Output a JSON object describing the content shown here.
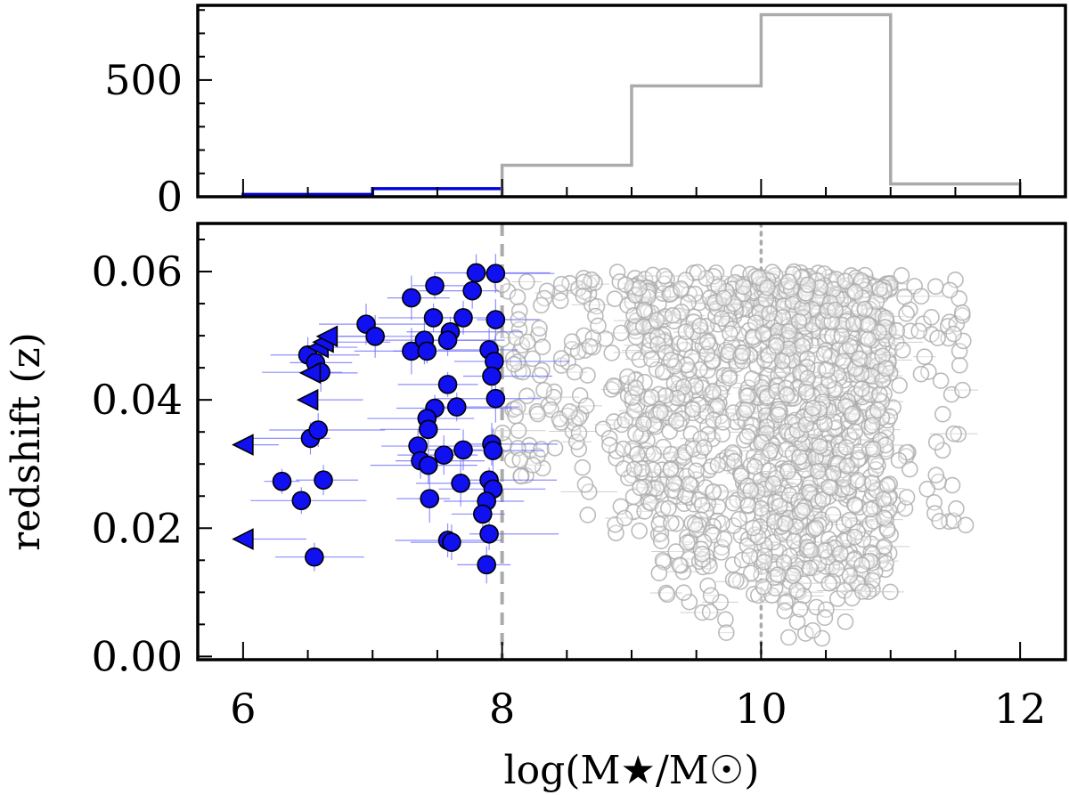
{
  "chart_data": [
    {
      "type": "histogram",
      "panel": "top",
      "xlim": [
        5.65,
        12.35
      ],
      "ylim": [
        0,
        820
      ],
      "ytick_labels": [
        "0",
        "500"
      ],
      "yticks": [
        0,
        500
      ],
      "series": [
        {
          "color": "#0000dd",
          "bins": [
            [
              6,
              7,
              10
            ],
            [
              7,
              8,
              35
            ]
          ]
        },
        {
          "color": "#aaaaaa",
          "bins": [
            [
              8,
              9,
              135
            ],
            [
              9,
              10,
              475
            ],
            [
              10,
              11,
              780
            ],
            [
              11,
              12,
              55
            ]
          ]
        }
      ]
    },
    {
      "type": "scatter",
      "panel": "bottom",
      "xlabel": "log(M★/M☉)",
      "ylabel": "redshift (z)",
      "xlim": [
        5.65,
        12.35
      ],
      "ylim": [
        -0.0005,
        0.0675
      ],
      "xticks": [
        6,
        8,
        10,
        12
      ],
      "xtick_labels": [
        "6",
        "8",
        "10",
        "12"
      ],
      "yticks": [
        0.0,
        0.02,
        0.04,
        0.06
      ],
      "ytick_labels": [
        "0.00",
        "0.02",
        "0.04",
        "0.06"
      ],
      "reference_lines": [
        {
          "x": 8,
          "style": "dashed",
          "color": "#aaaaaa"
        },
        {
          "x": 10,
          "style": "dotted",
          "color": "#aaaaaa"
        }
      ],
      "blue_points": [
        [
          6.3,
          0.0273
        ],
        [
          6.45,
          0.0243
        ],
        [
          6.55,
          0.0155
        ],
        [
          6.62,
          0.0275
        ],
        [
          6.52,
          0.034
        ],
        [
          6.58,
          0.0353
        ],
        [
          6.5,
          0.047
        ],
        [
          6.56,
          0.0458
        ],
        [
          6.6,
          0.0443
        ],
        [
          6.95,
          0.0518
        ],
        [
          7.02,
          0.0499
        ],
        [
          7.3,
          0.0559
        ],
        [
          7.3,
          0.0476
        ],
        [
          7.4,
          0.0493
        ],
        [
          7.42,
          0.0476
        ],
        [
          7.48,
          0.0578
        ],
        [
          7.47,
          0.0528
        ],
        [
          7.6,
          0.0506
        ],
        [
          7.58,
          0.0493
        ],
        [
          7.7,
          0.0528
        ],
        [
          7.77,
          0.057
        ],
        [
          7.8,
          0.0598
        ],
        [
          7.95,
          0.0597
        ],
        [
          7.95,
          0.0525
        ],
        [
          7.9,
          0.0478
        ],
        [
          7.94,
          0.046
        ],
        [
          7.92,
          0.0437
        ],
        [
          7.95,
          0.0402
        ],
        [
          7.58,
          0.0424
        ],
        [
          7.48,
          0.0387
        ],
        [
          7.65,
          0.0389
        ],
        [
          7.42,
          0.0371
        ],
        [
          7.43,
          0.0354
        ],
        [
          7.35,
          0.0328
        ],
        [
          7.37,
          0.0305
        ],
        [
          7.43,
          0.0298
        ],
        [
          7.55,
          0.0314
        ],
        [
          7.7,
          0.0322
        ],
        [
          7.92,
          0.0331
        ],
        [
          7.93,
          0.0321
        ],
        [
          7.68,
          0.027
        ],
        [
          7.44,
          0.0246
        ],
        [
          7.9,
          0.0275
        ],
        [
          7.93,
          0.0261
        ],
        [
          7.88,
          0.0242
        ],
        [
          7.85,
          0.0222
        ],
        [
          7.9,
          0.0191
        ],
        [
          7.58,
          0.0181
        ],
        [
          7.61,
          0.0178
        ],
        [
          7.88,
          0.0143
        ]
      ],
      "blue_upper_limits": [
        [
          6.0,
          0.033
        ],
        [
          6.0,
          0.0183
        ],
        [
          6.5,
          0.04
        ],
        [
          6.52,
          0.0442
        ],
        [
          6.58,
          0.0482
        ],
        [
          6.62,
          0.049
        ],
        [
          6.65,
          0.0499
        ]
      ],
      "gray_points_summary": {
        "count": 1450,
        "logM_range": [
          8.0,
          11.6
        ],
        "z_range": [
          0.002,
          0.06
        ],
        "color": "#aaaaaa"
      }
    }
  ]
}
